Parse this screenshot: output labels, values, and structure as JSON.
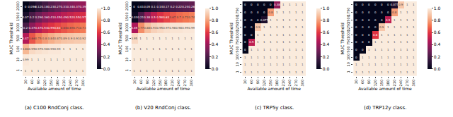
{
  "chart_data": [
    {
      "type": "heatmap",
      "title": "(a) C100 RndConj class.",
      "xlabel": "Available amount of time",
      "ylabel": "MUC Threshold",
      "x": [
        30,
        60,
        90,
        120,
        150,
        180,
        210,
        240,
        270,
        300
      ],
      "y": [
        1,
        10,
        100,
        500,
        1000,
        1500,
        2000
      ],
      "cells": [
        [
          1,
          1,
          1,
          1,
          1,
          1,
          1,
          1,
          1,
          1
        ],
        [
          0.99,
          1,
          1,
          1,
          1,
          1,
          1,
          1,
          1,
          1
        ],
        [
          0.86,
          0.95,
          0.97,
          0.98,
          0.99,
          0.99,
          1,
          1,
          1,
          1
        ],
        [
          0.47,
          0.66,
          0.75,
          0.8,
          0.84,
          0.87,
          0.89,
          0.9,
          0.91,
          0.92
        ],
        [
          0.2,
          0.37,
          0.47,
          0.54,
          0.59,
          0.63,
          0.66,
          0.69,
          0.71,
          0.73
        ],
        [
          0.07,
          0.2,
          0.29,
          0.36,
          0.41,
          0.45,
          0.49,
          0.52,
          0.55,
          0.57
        ],
        [
          0,
          0.056,
          0.12,
          0.18,
          0.23,
          0.27,
          0.31,
          0.34,
          0.37,
          0.39
        ]
      ],
      "zlim": [
        0,
        1
      ],
      "zticks": [
        {
          "value": 0,
          "label": "0.0"
        },
        {
          "value": 0.2,
          "label": "0.2"
        },
        {
          "value": 0.4,
          "label": "0.4"
        },
        {
          "value": 0.6,
          "label": "0.6"
        },
        {
          "value": 0.8,
          "label": "0.8"
        },
        {
          "value": 1,
          "label": "1.0"
        }
      ],
      "data_labels": true
    },
    {
      "type": "heatmap",
      "title": "(b) V20 RndConj class.",
      "xlabel": "Available amount of time",
      "ylabel": "MUC Threshold",
      "x": [
        30,
        60,
        90,
        120,
        150,
        180,
        210,
        240,
        270,
        300
      ],
      "y": [
        1,
        10,
        100,
        500,
        1000,
        1500,
        2000
      ],
      "cells": [
        [
          1,
          1,
          1,
          1,
          1,
          1,
          1,
          1,
          1,
          1
        ],
        [
          1,
          1,
          1,
          1,
          1,
          1,
          1,
          1,
          1,
          1
        ],
        [
          1,
          1,
          1,
          1,
          1,
          1,
          1,
          1,
          1,
          1
        ],
        [
          0.95,
          1,
          1,
          1,
          1,
          1,
          1,
          1,
          1,
          1
        ],
        [
          0.45,
          0.77,
          0.88,
          0.93,
          0.95,
          0.97,
          0.98,
          0.98,
          0.99,
          0.99
        ],
        [
          0.03,
          0.21,
          0.38,
          0.5,
          0.58,
          0.63,
          0.67,
          0.7,
          0.72,
          0.74
        ],
        [
          0,
          0.01,
          0.05,
          0.1,
          0.14,
          0.17,
          0.2,
          0.22,
          0.24,
          0.26
        ]
      ],
      "zlim": [
        0,
        1
      ],
      "zticks": [
        {
          "value": 0,
          "label": "0.0"
        },
        {
          "value": 0.2,
          "label": "0.2"
        },
        {
          "value": 0.4,
          "label": "0.4"
        },
        {
          "value": 0.6,
          "label": "0.6"
        },
        {
          "value": 0.8,
          "label": "0.8"
        },
        {
          "value": 1,
          "label": "1.0"
        }
      ],
      "data_labels": true
    },
    {
      "type": "heatmap",
      "title": "(c) TRP5y class.",
      "xlabel": "Available amount of time",
      "ylabel": "MUC Threshold",
      "x": [
        30,
        60,
        90,
        120,
        150,
        180,
        210,
        240,
        270,
        300
      ],
      "y": [
        1,
        10,
        100,
        500,
        750,
        1000,
        1250,
        1500,
        1750,
        2000
      ],
      "cells": [
        [
          1,
          1,
          1,
          1,
          1,
          1,
          1,
          1,
          1,
          1
        ],
        [
          1,
          1,
          1,
          1,
          1,
          1,
          1,
          1,
          1,
          1
        ],
        [
          1,
          1,
          1,
          1,
          1,
          1,
          1,
          1,
          1,
          1
        ],
        [
          0,
          1,
          1,
          1,
          1,
          1,
          1,
          1,
          1,
          1
        ],
        [
          0,
          0.5,
          1,
          1,
          1,
          1,
          1,
          1,
          1,
          1
        ],
        [
          0,
          0,
          1,
          1,
          1,
          1,
          1,
          1,
          1,
          1
        ],
        [
          0,
          0,
          0.9,
          1,
          1,
          1,
          1,
          1,
          1,
          1
        ],
        [
          0,
          0,
          0,
          0.077,
          1,
          1,
          1,
          1,
          1,
          1
        ],
        [
          0,
          0,
          0,
          0,
          0.8,
          1,
          1,
          1,
          1,
          1
        ],
        [
          0,
          0,
          0,
          0,
          0,
          0.38,
          1,
          1,
          1,
          1
        ]
      ],
      "zlim": [
        0,
        1
      ],
      "zticks": [
        {
          "value": 0,
          "label": "0.0"
        },
        {
          "value": 0.2,
          "label": "0.2"
        },
        {
          "value": 0.4,
          "label": "0.4"
        },
        {
          "value": 0.6,
          "label": "0.6"
        },
        {
          "value": 0.8,
          "label": "0.8"
        },
        {
          "value": 1,
          "label": "1.0"
        }
      ],
      "data_labels": true
    },
    {
      "type": "heatmap",
      "title": "(d) TRP12y class.",
      "xlabel": "Available amount of time",
      "ylabel": "MUC Threshold",
      "x": [
        30,
        60,
        90,
        120,
        150,
        180,
        210,
        240,
        270,
        300
      ],
      "y": [
        1,
        10,
        100,
        500,
        750,
        1000,
        1250,
        1500,
        1750,
        2000
      ],
      "cells": [
        [
          1,
          1,
          1,
          1,
          1,
          1,
          1,
          1,
          1,
          1
        ],
        [
          1,
          1,
          1,
          1,
          1,
          1,
          1,
          1,
          1,
          1
        ],
        [
          0,
          1,
          1,
          1,
          1,
          1,
          1,
          1,
          1,
          1
        ],
        [
          0,
          0,
          1,
          1,
          1,
          1,
          1,
          1,
          1,
          1
        ],
        [
          0,
          0,
          0,
          1,
          1,
          1,
          1,
          1,
          1,
          1
        ],
        [
          0,
          0,
          0,
          0.6,
          1,
          1,
          1,
          1,
          1,
          1
        ],
        [
          0,
          0,
          0,
          0,
          0.9,
          1,
          1,
          1,
          1,
          1
        ],
        [
          0,
          0,
          0,
          0,
          0,
          0.5,
          1,
          1,
          1,
          1
        ],
        [
          0,
          0,
          0,
          0,
          0,
          0,
          0.8,
          1,
          1,
          1
        ],
        [
          0,
          0,
          0,
          0,
          0,
          0,
          0.077,
          0.9,
          1,
          1
        ]
      ],
      "zlim": [
        0,
        1
      ],
      "zticks": [
        {
          "value": 0,
          "label": "0.0"
        },
        {
          "value": 0.2,
          "label": "0.2"
        },
        {
          "value": 0.4,
          "label": "0.4"
        },
        {
          "value": 0.6,
          "label": "0.6"
        },
        {
          "value": 0.8,
          "label": "0.8"
        },
        {
          "value": 1,
          "label": "1.0"
        }
      ],
      "data_labels": true
    }
  ]
}
